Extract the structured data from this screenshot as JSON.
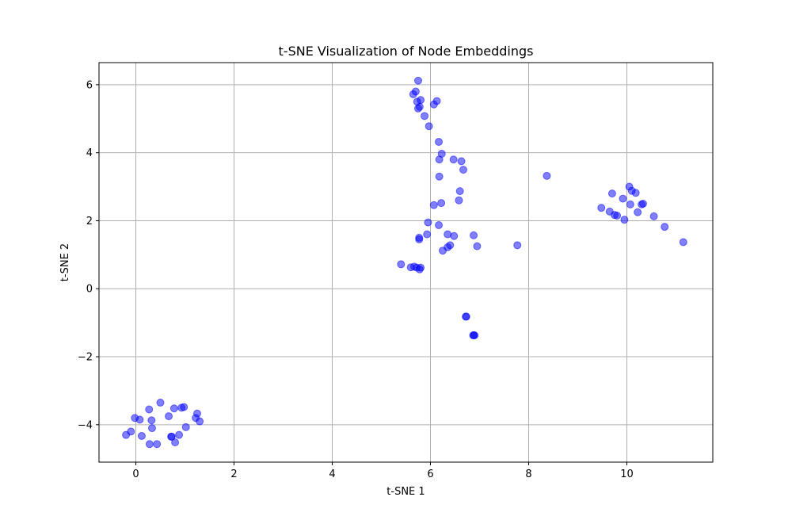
{
  "chart_data": {
    "type": "scatter",
    "title": "t-SNE Visualization of Node Embeddings",
    "xlabel": "t-SNE 1",
    "ylabel": "t-SNE 2",
    "xlim": [
      -0.75,
      11.75
    ],
    "ylim": [
      -5.1,
      6.65
    ],
    "xticks": [
      0,
      2,
      4,
      6,
      8,
      10
    ],
    "yticks": [
      -4,
      -2,
      0,
      2,
      4,
      6
    ],
    "xtick_labels": [
      "0",
      "2",
      "4",
      "6",
      "8",
      "10"
    ],
    "ytick_labels": [
      "−4",
      "−2",
      "0",
      "2",
      "4",
      "6"
    ],
    "grid": true,
    "legend": "none",
    "marker_color": "#0000ff",
    "marker_alpha": 0.5,
    "series": [
      {
        "points": [
          [
            -0.2,
            -4.3
          ],
          [
            -0.1,
            -4.2
          ],
          [
            -0.02,
            -3.8
          ],
          [
            0.08,
            -3.85
          ],
          [
            0.12,
            -4.33
          ],
          [
            0.27,
            -3.55
          ],
          [
            0.28,
            -4.57
          ],
          [
            0.32,
            -3.87
          ],
          [
            0.33,
            -4.1
          ],
          [
            0.43,
            -4.57
          ],
          [
            0.5,
            -3.35
          ],
          [
            0.67,
            -3.75
          ],
          [
            0.72,
            -4.35
          ],
          [
            0.73,
            -4.35
          ],
          [
            0.78,
            -3.52
          ],
          [
            0.8,
            -4.52
          ],
          [
            0.88,
            -4.3
          ],
          [
            0.93,
            -3.5
          ],
          [
            0.98,
            -3.48
          ],
          [
            1.02,
            -4.07
          ],
          [
            1.22,
            -3.8
          ],
          [
            1.25,
            -3.67
          ],
          [
            1.3,
            -3.9
          ],
          [
            5.4,
            0.72
          ],
          [
            5.6,
            0.63
          ],
          [
            5.67,
            0.65
          ],
          [
            5.72,
            0.62
          ],
          [
            5.78,
            0.57
          ],
          [
            5.8,
            0.62
          ],
          [
            5.77,
            1.45
          ],
          [
            5.77,
            1.5
          ],
          [
            5.93,
            1.6
          ],
          [
            5.95,
            1.95
          ],
          [
            6.07,
            2.46
          ],
          [
            6.17,
            1.87
          ],
          [
            6.22,
            2.52
          ],
          [
            6.25,
            1.12
          ],
          [
            6.35,
            1.22
          ],
          [
            6.35,
            1.6
          ],
          [
            6.4,
            1.28
          ],
          [
            6.48,
            1.55
          ],
          [
            6.58,
            2.6
          ],
          [
            6.6,
            2.87
          ],
          [
            6.88,
            1.57
          ],
          [
            6.95,
            1.25
          ],
          [
            7.77,
            1.28
          ],
          [
            6.18,
            3.3
          ],
          [
            6.18,
            3.8
          ],
          [
            6.23,
            3.97
          ],
          [
            6.47,
            3.8
          ],
          [
            6.63,
            3.75
          ],
          [
            6.67,
            3.5
          ],
          [
            6.17,
            4.32
          ],
          [
            5.65,
            5.72
          ],
          [
            5.7,
            5.8
          ],
          [
            5.73,
            5.5
          ],
          [
            5.75,
            5.3
          ],
          [
            5.78,
            5.35
          ],
          [
            5.8,
            5.55
          ],
          [
            5.75,
            6.12
          ],
          [
            5.88,
            5.08
          ],
          [
            5.97,
            4.78
          ],
          [
            6.07,
            5.42
          ],
          [
            6.13,
            5.52
          ],
          [
            8.37,
            3.32
          ],
          [
            9.48,
            2.38
          ],
          [
            9.65,
            2.27
          ],
          [
            9.7,
            2.8
          ],
          [
            9.75,
            2.17
          ],
          [
            9.8,
            2.15
          ],
          [
            9.92,
            2.65
          ],
          [
            9.95,
            2.03
          ],
          [
            10.05,
            3.0
          ],
          [
            10.07,
            2.48
          ],
          [
            10.1,
            2.88
          ],
          [
            10.18,
            2.82
          ],
          [
            10.22,
            2.25
          ],
          [
            10.3,
            2.48
          ],
          [
            10.33,
            2.5
          ],
          [
            10.55,
            2.13
          ],
          [
            10.77,
            1.82
          ],
          [
            11.15,
            1.37
          ],
          [
            6.72,
            -0.82
          ],
          [
            6.73,
            -0.82
          ],
          [
            6.87,
            -1.37
          ],
          [
            6.88,
            -1.37
          ],
          [
            6.9,
            -1.37
          ]
        ]
      }
    ]
  }
}
